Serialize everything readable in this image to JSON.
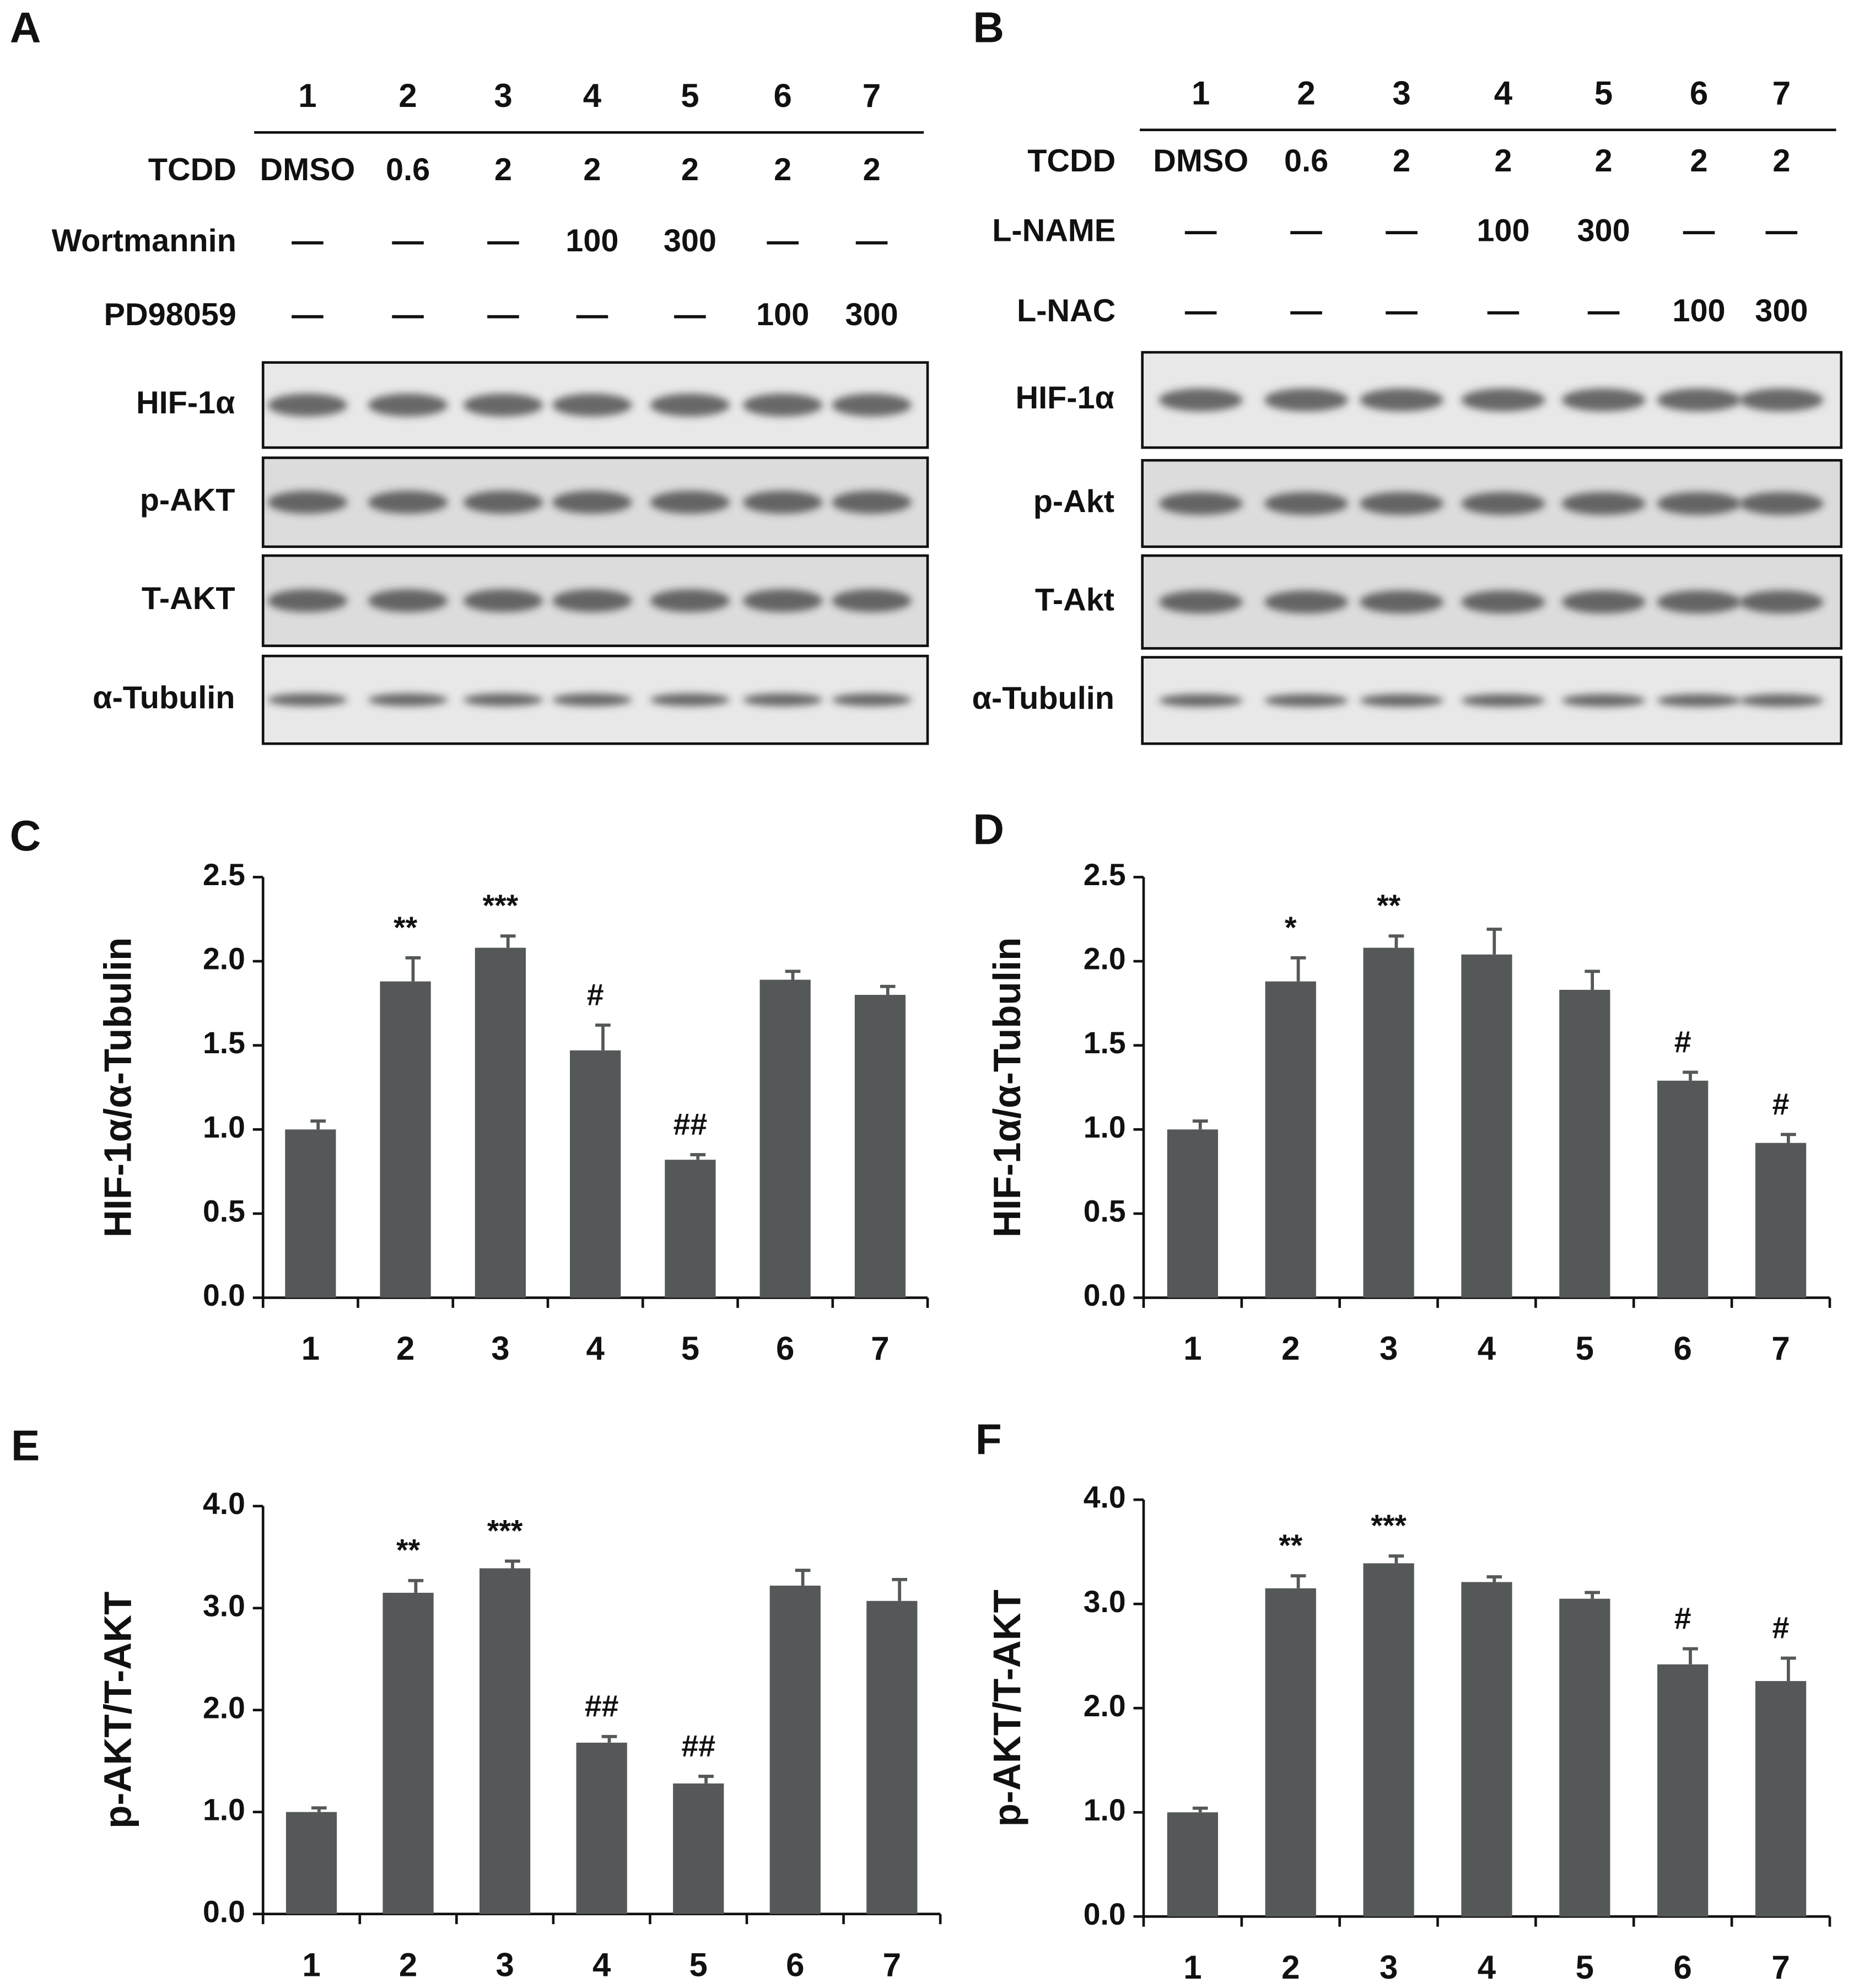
{
  "panels": [
    {
      "label": "A",
      "lanes": [
        "1",
        "2",
        "3",
        "4",
        "5",
        "6",
        "7"
      ],
      "treatments": [
        {
          "name": "TCDD",
          "values": [
            "DMSO",
            "0.6",
            "2",
            "2",
            "2",
            "2",
            "2"
          ]
        },
        {
          "name": "Wortmannin",
          "values": [
            "—",
            "—",
            "—",
            "100",
            "300",
            "—",
            "—"
          ]
        },
        {
          "name": "PD98059",
          "values": [
            "—",
            "—",
            "—",
            "—",
            "—",
            "100",
            "300"
          ]
        }
      ],
      "blots": [
        "HIF-1α",
        "p-AKT",
        "T-AKT",
        "α-Tubulin"
      ]
    },
    {
      "label": "B",
      "lanes": [
        "1",
        "2",
        "3",
        "4",
        "5",
        "6",
        "7"
      ],
      "treatments": [
        {
          "name": "TCDD",
          "values": [
            "DMSO",
            "0.6",
            "2",
            "2",
            "2",
            "2",
            "2"
          ]
        },
        {
          "name": "L-NAME",
          "values": [
            "—",
            "—",
            "—",
            "100",
            "300",
            "—",
            "—"
          ]
        },
        {
          "name": "L-NAC",
          "values": [
            "—",
            "—",
            "—",
            "—",
            "—",
            "100",
            "300"
          ]
        }
      ],
      "blots": [
        "HIF-1α",
        "p-Akt",
        "T-Akt",
        "α-Tubulin"
      ]
    }
  ],
  "chart_data": [
    {
      "type": "bar",
      "panel": "C",
      "y_label": "HIF-1α/α-Tubulin",
      "color": "#545859",
      "categories": [
        "1",
        "2",
        "3",
        "4",
        "5",
        "6",
        "7"
      ],
      "values": [
        1.0,
        1.88,
        2.08,
        1.47,
        0.82,
        1.89,
        1.8
      ],
      "errors": [
        0.05,
        0.14,
        0.07,
        0.15,
        0.03,
        0.05,
        0.05
      ],
      "annotations": [
        null,
        "**",
        "***",
        "#",
        "##",
        null,
        null
      ],
      "ylim": [
        0,
        2.5
      ],
      "yticks": [
        {
          "value": 0,
          "label": "0.0"
        },
        {
          "value": 0.5,
          "label": "0.5"
        },
        {
          "value": 1,
          "label": "1.0"
        },
        {
          "value": 1.5,
          "label": "1.5"
        },
        {
          "value": 2,
          "label": "2.0"
        },
        {
          "value": 2.5,
          "label": "2.5"
        }
      ]
    },
    {
      "type": "bar",
      "panel": "D",
      "y_label": "HIF-1α/α-Tubulin",
      "color": "#545859",
      "categories": [
        "1",
        "2",
        "3",
        "4",
        "5",
        "6",
        "7"
      ],
      "values": [
        1.0,
        1.88,
        2.08,
        2.04,
        1.83,
        1.29,
        0.92
      ],
      "errors": [
        0.05,
        0.14,
        0.07,
        0.15,
        0.11,
        0.05,
        0.05
      ],
      "annotations": [
        null,
        "*",
        "**",
        null,
        null,
        "#",
        "#"
      ],
      "ylim": [
        0,
        2.5
      ],
      "yticks": [
        {
          "value": 0,
          "label": "0.0"
        },
        {
          "value": 0.5,
          "label": "0.5"
        },
        {
          "value": 1,
          "label": "1.0"
        },
        {
          "value": 1.5,
          "label": "1.5"
        },
        {
          "value": 2,
          "label": "2.0"
        },
        {
          "value": 2.5,
          "label": "2.5"
        }
      ]
    },
    {
      "type": "bar",
      "panel": "E",
      "y_label": "p-AKT/T-AKT",
      "color": "#545859",
      "categories": [
        "1",
        "2",
        "3",
        "4",
        "5",
        "6",
        "7"
      ],
      "values": [
        1.0,
        3.15,
        3.39,
        1.68,
        1.28,
        3.22,
        3.07
      ],
      "errors": [
        0.04,
        0.12,
        0.07,
        0.06,
        0.07,
        0.15,
        0.21
      ],
      "annotations": [
        null,
        "**",
        "***",
        "##",
        "##",
        null,
        null
      ],
      "ylim": [
        0,
        4
      ],
      "yticks": [
        {
          "value": 0,
          "label": "0.0"
        },
        {
          "value": 1,
          "label": "1.0"
        },
        {
          "value": 2,
          "label": "2.0"
        },
        {
          "value": 3,
          "label": "3.0"
        },
        {
          "value": 4,
          "label": "4.0"
        }
      ]
    },
    {
      "type": "bar",
      "panel": "F",
      "y_label": "p-AKT/T-AKT",
      "color": "#545859",
      "categories": [
        "1",
        "2",
        "3",
        "4",
        "5",
        "6",
        "7"
      ],
      "values": [
        1.0,
        3.15,
        3.39,
        3.21,
        3.05,
        2.42,
        2.26
      ],
      "errors": [
        0.04,
        0.12,
        0.07,
        0.05,
        0.06,
        0.15,
        0.22
      ],
      "annotations": [
        null,
        "**",
        "***",
        null,
        null,
        "#",
        "#"
      ],
      "ylim": [
        0,
        4
      ],
      "yticks": [
        {
          "value": 0,
          "label": "0.0"
        },
        {
          "value": 1,
          "label": "1.0"
        },
        {
          "value": 2,
          "label": "2.0"
        },
        {
          "value": 3,
          "label": "3.0"
        },
        {
          "value": 4,
          "label": "4.0"
        }
      ]
    }
  ]
}
